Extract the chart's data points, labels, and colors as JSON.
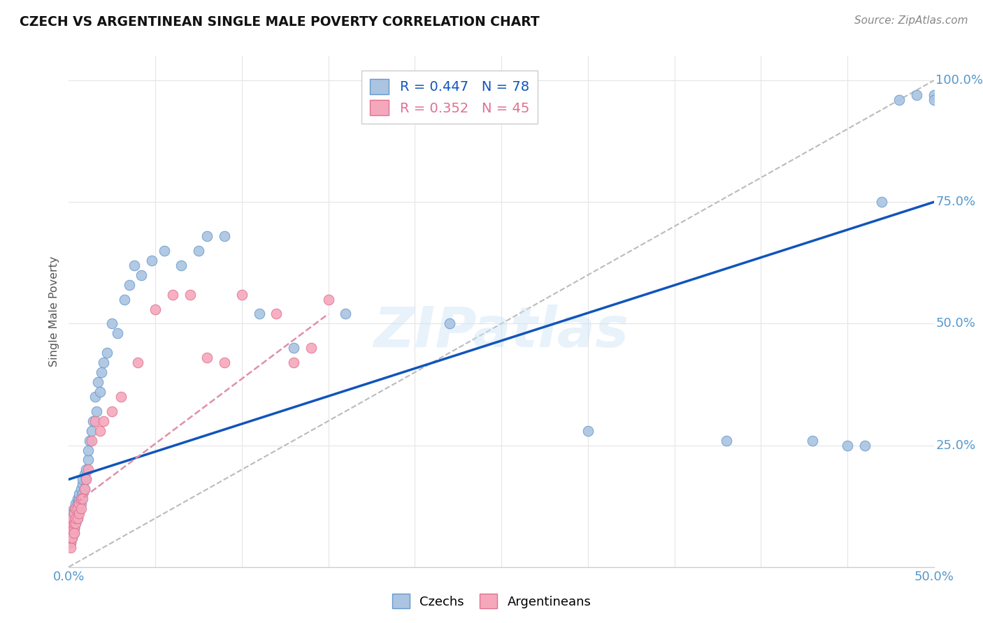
{
  "title": "CZECH VS ARGENTINEAN SINGLE MALE POVERTY CORRELATION CHART",
  "source": "Source: ZipAtlas.com",
  "ylabel": "Single Male Poverty",
  "xlim": [
    0.0,
    0.5
  ],
  "ylim": [
    0.0,
    1.05
  ],
  "czech_color": "#aac4e2",
  "arg_color": "#f5a8bc",
  "czech_edge": "#6699cc",
  "arg_edge": "#e07090",
  "trendline_czech_color": "#1155bb",
  "trendline_arg_color": "#e090a8",
  "diagonal_color": "#bbbbbb",
  "watermark_color": "#ddeeff",
  "background_color": "#ffffff",
  "grid_color": "#e5e5e5",
  "tick_color": "#5599cc",
  "legend_r1": "R = 0.447",
  "legend_n1": "N = 78",
  "legend_r2": "R = 0.352",
  "legend_n2": "N = 45",
  "czech_x": [
    0.001,
    0.001,
    0.001,
    0.001,
    0.001,
    0.002,
    0.002,
    0.002,
    0.002,
    0.002,
    0.002,
    0.003,
    0.003,
    0.003,
    0.003,
    0.003,
    0.003,
    0.003,
    0.004,
    0.004,
    0.004,
    0.004,
    0.004,
    0.005,
    0.005,
    0.005,
    0.005,
    0.005,
    0.006,
    0.006,
    0.006,
    0.007,
    0.007,
    0.008,
    0.008,
    0.008,
    0.009,
    0.009,
    0.01,
    0.01,
    0.011,
    0.011,
    0.012,
    0.013,
    0.014,
    0.015,
    0.016,
    0.017,
    0.018,
    0.019,
    0.02,
    0.022,
    0.025,
    0.028,
    0.032,
    0.035,
    0.038,
    0.042,
    0.048,
    0.055,
    0.065,
    0.075,
    0.08,
    0.09,
    0.11,
    0.13,
    0.16,
    0.22,
    0.3,
    0.38,
    0.43,
    0.45,
    0.46,
    0.47,
    0.48,
    0.49,
    0.5,
    0.5
  ],
  "czech_y": [
    0.05,
    0.07,
    0.08,
    0.06,
    0.09,
    0.07,
    0.08,
    0.06,
    0.09,
    0.1,
    0.11,
    0.08,
    0.09,
    0.1,
    0.07,
    0.11,
    0.12,
    0.08,
    0.09,
    0.1,
    0.12,
    0.13,
    0.11,
    0.1,
    0.12,
    0.13,
    0.14,
    0.11,
    0.12,
    0.14,
    0.15,
    0.13,
    0.16,
    0.15,
    0.17,
    0.18,
    0.16,
    0.19,
    0.18,
    0.2,
    0.22,
    0.24,
    0.26,
    0.28,
    0.3,
    0.35,
    0.32,
    0.38,
    0.36,
    0.4,
    0.42,
    0.44,
    0.5,
    0.48,
    0.55,
    0.58,
    0.62,
    0.6,
    0.63,
    0.65,
    0.62,
    0.65,
    0.68,
    0.68,
    0.52,
    0.45,
    0.52,
    0.5,
    0.28,
    0.26,
    0.26,
    0.25,
    0.25,
    0.75,
    0.96,
    0.97,
    0.97,
    0.96
  ],
  "arg_x": [
    0.001,
    0.001,
    0.001,
    0.001,
    0.001,
    0.001,
    0.002,
    0.002,
    0.002,
    0.002,
    0.002,
    0.003,
    0.003,
    0.003,
    0.003,
    0.004,
    0.004,
    0.004,
    0.005,
    0.005,
    0.006,
    0.006,
    0.007,
    0.007,
    0.008,
    0.009,
    0.01,
    0.011,
    0.013,
    0.015,
    0.018,
    0.02,
    0.025,
    0.03,
    0.04,
    0.05,
    0.06,
    0.07,
    0.08,
    0.09,
    0.1,
    0.12,
    0.13,
    0.14,
    0.15
  ],
  "arg_y": [
    0.05,
    0.06,
    0.07,
    0.08,
    0.04,
    0.06,
    0.07,
    0.08,
    0.06,
    0.09,
    0.1,
    0.08,
    0.09,
    0.07,
    0.11,
    0.09,
    0.1,
    0.12,
    0.1,
    0.12,
    0.11,
    0.13,
    0.12,
    0.14,
    0.14,
    0.16,
    0.18,
    0.2,
    0.26,
    0.3,
    0.28,
    0.3,
    0.32,
    0.35,
    0.42,
    0.53,
    0.56,
    0.56,
    0.43,
    0.42,
    0.56,
    0.52,
    0.42,
    0.45,
    0.55
  ],
  "czech_trendline_x": [
    0.0,
    0.5
  ],
  "czech_trendline_y": [
    0.18,
    0.75
  ],
  "arg_trendline_x": [
    0.0,
    0.15
  ],
  "arg_trendline_y": [
    0.12,
    0.52
  ]
}
